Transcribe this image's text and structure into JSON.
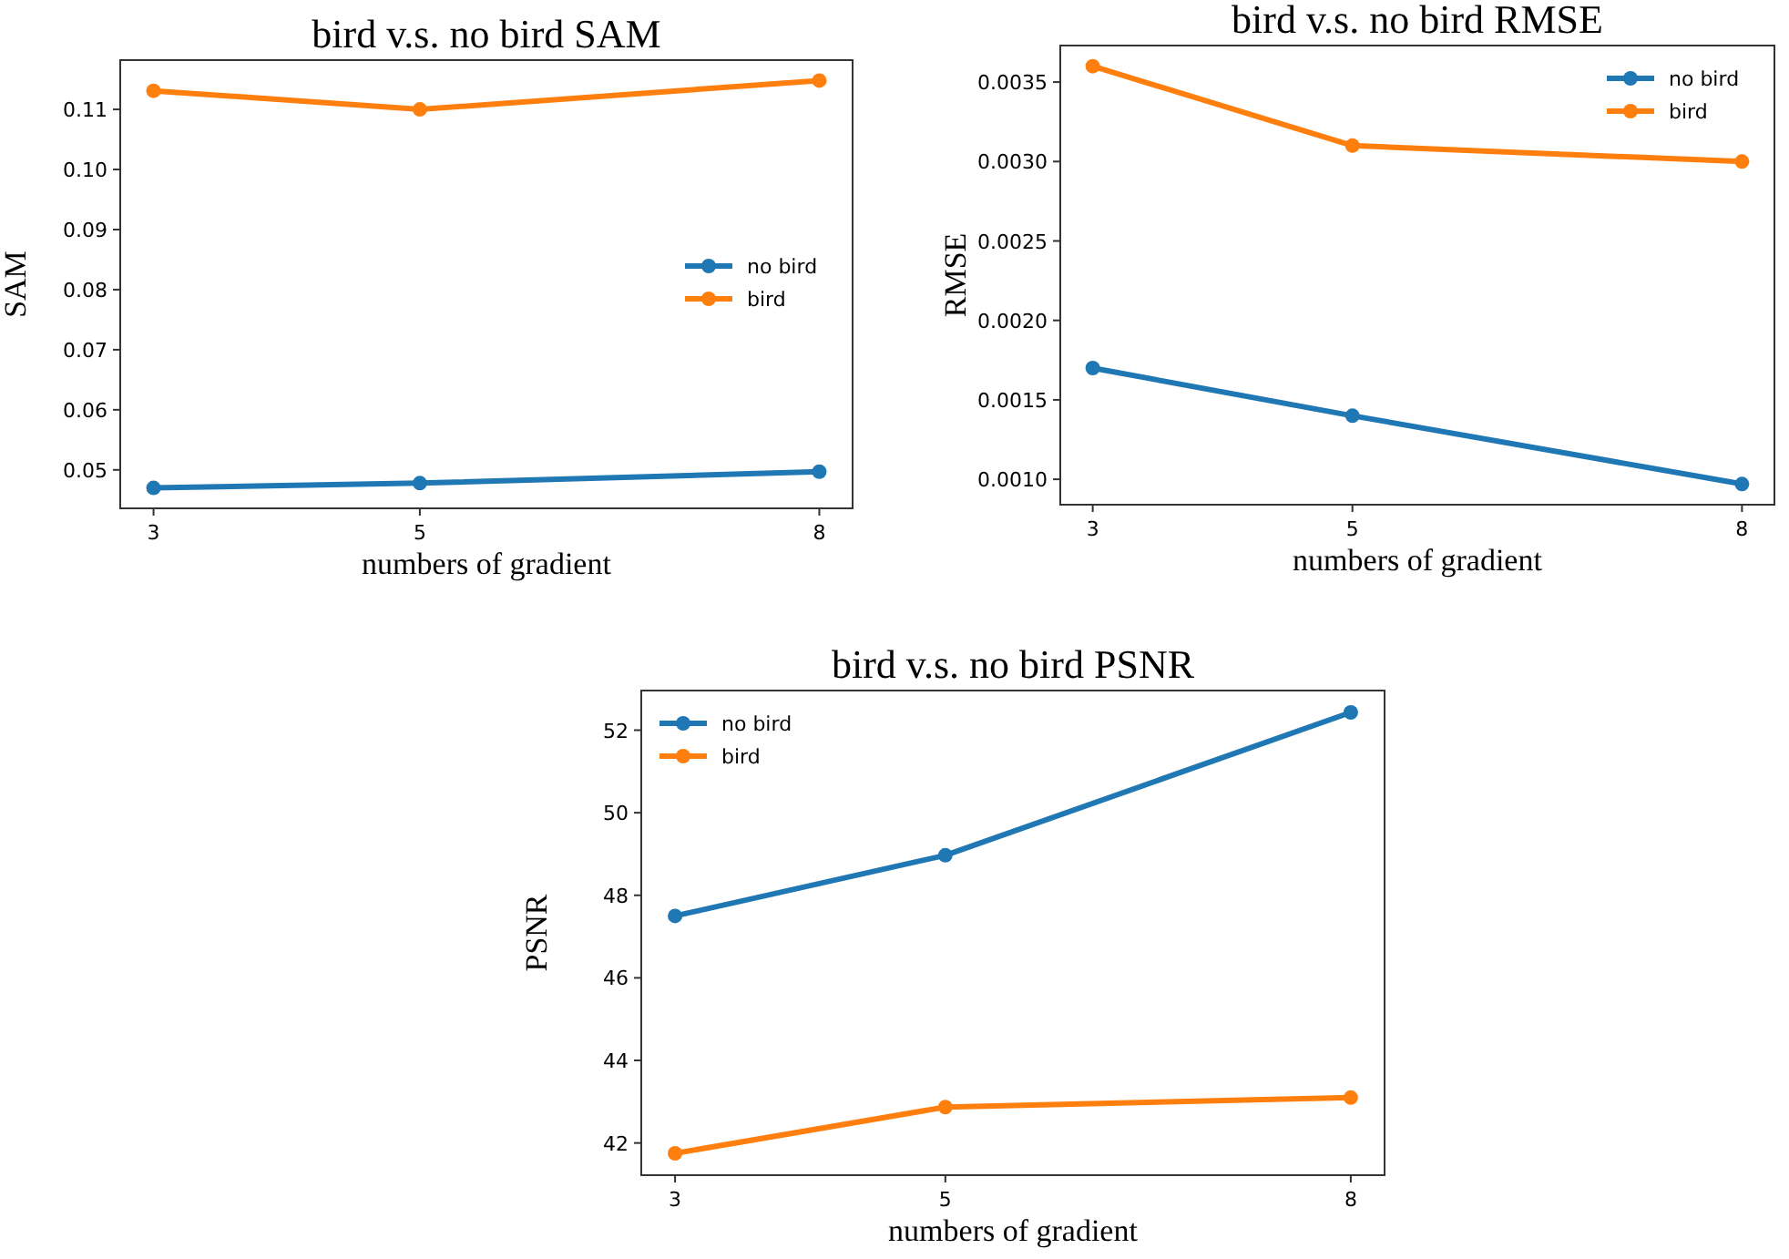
{
  "chart_data": [
    {
      "type": "line",
      "title": "bird v.s. no bird SAM",
      "xlabel": "numbers of gradient",
      "ylabel": "SAM",
      "x": [
        3,
        5,
        8
      ],
      "xlim": [
        2.75,
        8.25
      ],
      "xticks": [
        3,
        5,
        8
      ],
      "ylim": [
        0.0436,
        0.1182
      ],
      "yticks": [
        0.05,
        0.06,
        0.07,
        0.08,
        0.09,
        {
          "value": 0.1,
          "label": "0.10"
        },
        0.11
      ],
      "legend": "center right",
      "marker": "circle",
      "series": [
        {
          "name": "no bird",
          "color": "#1f77b4",
          "values": [
            0.047,
            0.0478,
            0.0497
          ]
        },
        {
          "name": "bird",
          "color": "#ff7f0e",
          "values": [
            0.1131,
            0.11,
            0.1148
          ]
        }
      ]
    },
    {
      "type": "line",
      "title": "bird v.s. no bird RMSE",
      "xlabel": "numbers of gradient",
      "ylabel": "RMSE",
      "x": [
        3,
        5,
        8
      ],
      "xlim": [
        2.75,
        8.25
      ],
      "xticks": [
        3,
        5,
        8
      ],
      "ylim": [
        0.00084,
        0.00373
      ],
      "yticks": [
        {
          "value": 0.001,
          "label": "0.0010"
        },
        0.0015,
        {
          "value": 0.002,
          "label": "0.0020"
        },
        0.0025,
        {
          "value": 0.003,
          "label": "0.0030"
        },
        0.0035
      ],
      "legend": "top right",
      "marker": "circle",
      "series": [
        {
          "name": "no bird",
          "color": "#1f77b4",
          "values": [
            0.0017,
            0.0014,
            0.00097
          ]
        },
        {
          "name": "bird",
          "color": "#ff7f0e",
          "values": [
            0.0036,
            0.0031,
            0.003
          ]
        }
      ]
    },
    {
      "type": "line",
      "title": "bird v.s. no bird PSNR",
      "xlabel": "numbers of gradient",
      "ylabel": "PSNR",
      "x": [
        3,
        5,
        8
      ],
      "xlim": [
        2.75,
        8.25
      ],
      "xticks": [
        3,
        5,
        8
      ],
      "ylim": [
        41.22,
        52.96
      ],
      "yticks": [
        42,
        44,
        46,
        48,
        50,
        52
      ],
      "legend": "top left",
      "marker": "circle",
      "series": [
        {
          "name": "no bird",
          "color": "#1f77b4",
          "values": [
            47.5,
            48.97,
            52.43
          ]
        },
        {
          "name": "bird",
          "color": "#ff7f0e",
          "values": [
            41.75,
            42.87,
            43.1
          ]
        }
      ]
    }
  ]
}
